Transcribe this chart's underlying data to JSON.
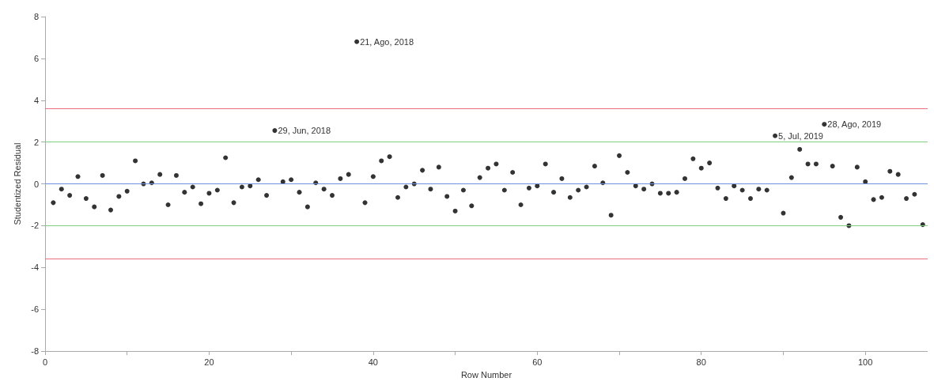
{
  "chart_data": {
    "type": "scatter",
    "xlabel": "Row Number",
    "ylabel": "Studentized Residual",
    "marker": "circle",
    "grid": false,
    "x": [
      1,
      2,
      3,
      4,
      5,
      6,
      7,
      8,
      9,
      10,
      11,
      12,
      13,
      14,
      15,
      16,
      17,
      18,
      19,
      20,
      21,
      22,
      23,
      24,
      25,
      26,
      27,
      28,
      29,
      30,
      31,
      32,
      33,
      34,
      35,
      36,
      37,
      38,
      39,
      40,
      41,
      42,
      43,
      44,
      45,
      46,
      47,
      48,
      49,
      50,
      51,
      52,
      53,
      54,
      55,
      56,
      57,
      58,
      59,
      60,
      61,
      62,
      63,
      64,
      65,
      66,
      67,
      68,
      69,
      70,
      71,
      72,
      73,
      74,
      75,
      76,
      77,
      78,
      79,
      80,
      81,
      82,
      83,
      84,
      85,
      86,
      87,
      88,
      89,
      90,
      91,
      92,
      93,
      94,
      95,
      96,
      97,
      98,
      99,
      100,
      101,
      102,
      103,
      104,
      105,
      106,
      107
    ],
    "series": [
      {
        "color": "#000000",
        "values": [
          -0.9,
          -0.25,
          -0.55,
          0.35,
          -0.7,
          -1.1,
          0.4,
          -1.25,
          -0.6,
          -0.35,
          1.1,
          0,
          0.05,
          0.45,
          -1.0,
          0.4,
          -0.4,
          -0.15,
          -0.95,
          -0.45,
          -0.3,
          1.25,
          -0.9,
          -0.15,
          -0.1,
          0.2,
          -0.55,
          2.55,
          0.1,
          0.2,
          -0.4,
          -1.1,
          0.05,
          -0.25,
          -0.55,
          0.25,
          0.45,
          6.8,
          -0.9,
          0.35,
          1.1,
          1.3,
          -0.65,
          -0.15,
          0,
          0.65,
          -0.25,
          0.8,
          -0.6,
          -1.3,
          -0.3,
          -1.05,
          0.3,
          0.75,
          0.95,
          -0.3,
          0.55,
          -1.0,
          -0.2,
          -0.1,
          0.95,
          -0.4,
          0.25,
          -0.65,
          -0.3,
          -0.15,
          0.85,
          0.05,
          -1.5,
          1.35,
          0.55,
          -0.1,
          -0.25,
          0,
          -0.45,
          -0.45,
          -0.4,
          0.25,
          1.2,
          0.75,
          1.0,
          -0.2,
          -0.7,
          -0.1,
          -0.3,
          -0.7,
          -0.25,
          -0.3,
          2.3,
          -1.4,
          0.3,
          1.65,
          0.95,
          0.95,
          2.85,
          0.85,
          -1.6,
          -2.0,
          0.8,
          0.1,
          -0.75,
          -0.65,
          0.6,
          0.45,
          -0.7,
          -0.5,
          -1.95
        ]
      }
    ],
    "xlim": [
      0,
      107.6
    ],
    "xticks": [
      0,
      {
        "value": 10,
        "label": null
      },
      20,
      {
        "value": 30,
        "label": null
      },
      40,
      {
        "value": 50,
        "label": null
      },
      60,
      {
        "value": 70,
        "label": null
      },
      80,
      {
        "value": 90,
        "label": null
      },
      100
    ],
    "ylim": [
      -8,
      8
    ],
    "yticks": [
      -8,
      -6,
      -4,
      -2,
      0,
      2,
      4,
      6,
      8
    ],
    "ref_lines": [
      {
        "axis": "y",
        "value": 3.6,
        "color": "#e8707c"
      },
      {
        "axis": "y",
        "value": 2,
        "color": "#80d080"
      },
      {
        "axis": "y",
        "value": 0,
        "color": "#7090e0"
      },
      {
        "axis": "y",
        "value": -2,
        "color": "#80d080"
      },
      {
        "axis": "y",
        "value": -3.6,
        "color": "#e8707c"
      }
    ],
    "annotations": [
      {
        "text": "29, Jun, 2018",
        "x": 28,
        "y": 2.55
      },
      {
        "text": "21, Ago, 2018",
        "x": 38,
        "y": 6.8
      },
      {
        "text": "5, Jul, 2019",
        "x": 89,
        "y": 2.3
      },
      {
        "text": "28, Ago, 2019",
        "x": 95,
        "y": 2.85
      }
    ]
  }
}
